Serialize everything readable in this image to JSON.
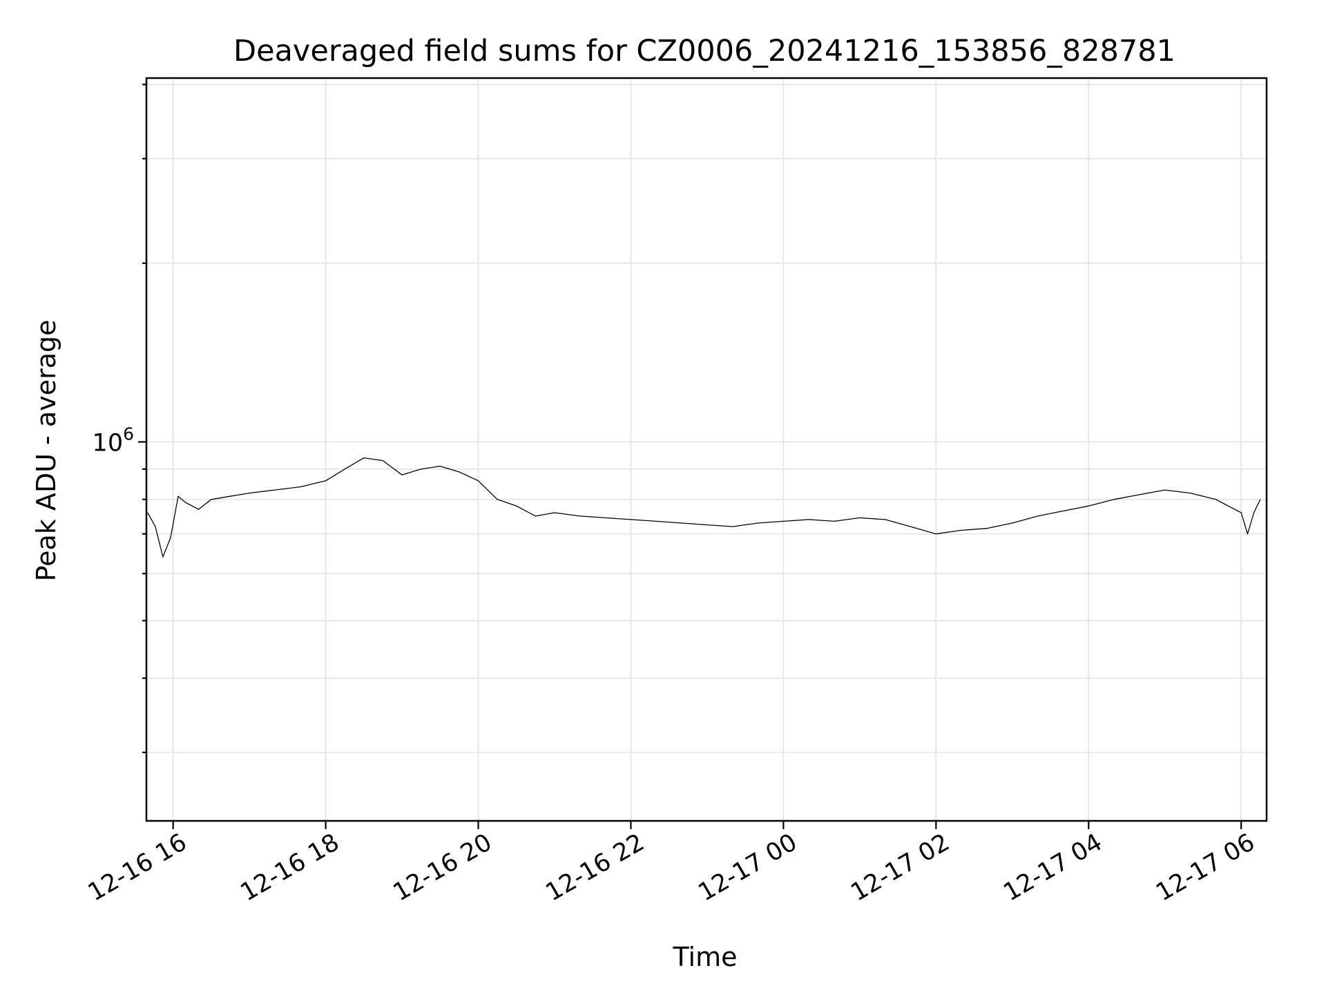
{
  "chart_data": {
    "type": "line",
    "title": "Deaveraged field sums for CZ0006_20241216_153856_828781",
    "xlabel": "Time",
    "ylabel": "Peak ADU - average",
    "y_scale": "log",
    "xlim": [
      "2024-12-16 15:39",
      "2024-12-17 06:20"
    ],
    "ylim": [
      230000,
      4100000
    ],
    "grid": true,
    "legend": "none",
    "line_color": "#000000",
    "x_ticks": [
      "12-16 16",
      "12-16 18",
      "12-16 20",
      "12-16 22",
      "12-17 00",
      "12-17 02",
      "12-17 04",
      "12-17 06"
    ],
    "y_ticks": [
      {
        "value": 1000000,
        "base": "10",
        "exponent": "6"
      }
    ],
    "series": [
      {
        "x": [
          "2024-12-16 15:40",
          "2024-12-16 15:46",
          "2024-12-16 15:52",
          "2024-12-16 15:58",
          "2024-12-16 16:04",
          "2024-12-16 16:10",
          "2024-12-16 16:20",
          "2024-12-16 16:30",
          "2024-12-16 16:45",
          "2024-12-16 17:00",
          "2024-12-16 17:20",
          "2024-12-16 17:40",
          "2024-12-16 18:00",
          "2024-12-16 18:15",
          "2024-12-16 18:30",
          "2024-12-16 18:45",
          "2024-12-16 19:00",
          "2024-12-16 19:15",
          "2024-12-16 19:30",
          "2024-12-16 19:45",
          "2024-12-16 20:00",
          "2024-12-16 20:15",
          "2024-12-16 20:30",
          "2024-12-16 20:45",
          "2024-12-16 21:00",
          "2024-12-16 21:20",
          "2024-12-16 21:40",
          "2024-12-16 22:00",
          "2024-12-16 22:20",
          "2024-12-16 22:40",
          "2024-12-16 23:00",
          "2024-12-16 23:20",
          "2024-12-16 23:40",
          "2024-12-17 00:00",
          "2024-12-17 00:20",
          "2024-12-17 00:40",
          "2024-12-17 01:00",
          "2024-12-17 01:20",
          "2024-12-17 01:40",
          "2024-12-17 02:00",
          "2024-12-17 02:20",
          "2024-12-17 02:40",
          "2024-12-17 03:00",
          "2024-12-17 03:20",
          "2024-12-17 03:40",
          "2024-12-17 04:00",
          "2024-12-17 04:20",
          "2024-12-17 04:40",
          "2024-12-17 05:00",
          "2024-12-17 05:20",
          "2024-12-17 05:40",
          "2024-12-17 06:00",
          "2024-12-17 06:05",
          "2024-12-17 06:10",
          "2024-12-17 06:15"
        ],
        "y": [
          760000,
          720000,
          640000,
          690000,
          810000,
          790000,
          770000,
          800000,
          810000,
          820000,
          830000,
          840000,
          860000,
          900000,
          940000,
          930000,
          880000,
          900000,
          910000,
          890000,
          860000,
          800000,
          780000,
          750000,
          760000,
          750000,
          745000,
          740000,
          735000,
          730000,
          725000,
          720000,
          730000,
          735000,
          740000,
          735000,
          745000,
          740000,
          720000,
          700000,
          710000,
          715000,
          730000,
          750000,
          765000,
          780000,
          800000,
          815000,
          830000,
          820000,
          800000,
          760000,
          700000,
          760000,
          800000
        ]
      }
    ]
  }
}
